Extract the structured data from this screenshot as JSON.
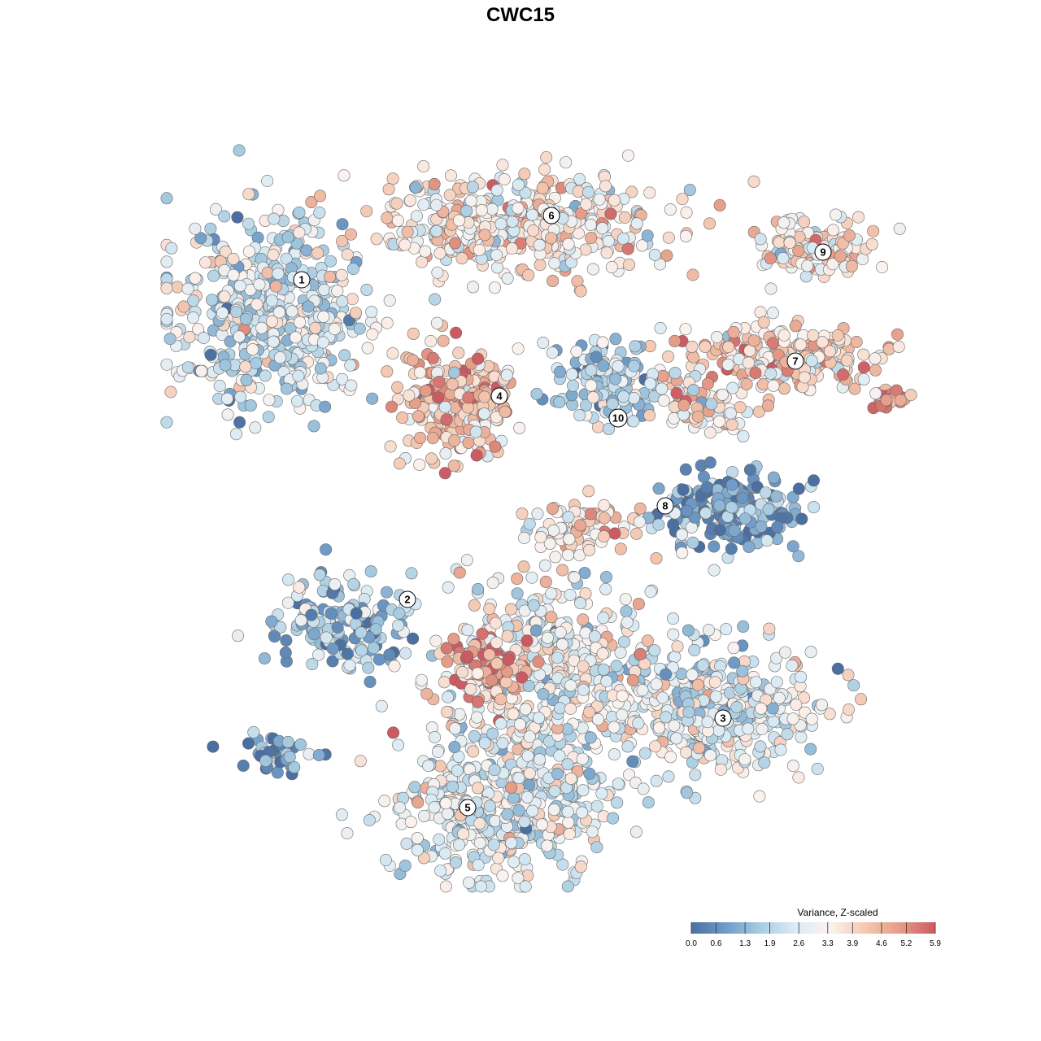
{
  "chart_data": {
    "type": "scatter",
    "title": "CWC15",
    "xlabel": "",
    "ylabel": "",
    "grid": false,
    "legend": {
      "title": "Variance, Z-scaled",
      "placement": "bottom-right",
      "ticks": [
        "0.0",
        "0.6",
        "1.3",
        "1.9",
        "2.6",
        "3.3",
        "3.9",
        "4.6",
        "5.2",
        "5.9"
      ],
      "range": [
        0.0,
        5.9
      ],
      "colors": [
        "#4a6fa0",
        "#6f9cc8",
        "#a9cde2",
        "#ddecf4",
        "#fbf2ee",
        "#f4c7b0",
        "#e59b86",
        "#cc5a62"
      ]
    },
    "clusters": [
      {
        "label": "1",
        "value_level": 2.4
      },
      {
        "label": "2",
        "value_level": 1.5
      },
      {
        "label": "3",
        "value_level": 2.5
      },
      {
        "label": "4",
        "value_level": 4.3
      },
      {
        "label": "5",
        "value_level": 2.7
      },
      {
        "label": "6",
        "value_level": 3.4
      },
      {
        "label": "7",
        "value_level": 3.9
      },
      {
        "label": "8",
        "value_level": 1.0
      },
      {
        "label": "9",
        "value_level": 3.2
      },
      {
        "label": "10",
        "value_level": 2.1
      }
    ]
  }
}
